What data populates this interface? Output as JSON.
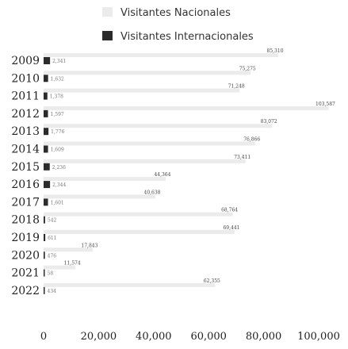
{
  "chart_data": {
    "type": "bar",
    "orientation": "horizontal",
    "categories": [
      "2009",
      "2010",
      "2011",
      "2012",
      "2013",
      "2014",
      "2015",
      "2016",
      "2017",
      "2018",
      "2019",
      "2020",
      "2021",
      "2022"
    ],
    "series": [
      {
        "name": "Visitantes Nacionales",
        "color": "#ebebeb",
        "values": [
          85310,
          75275,
          71248,
          103587,
          83072,
          76866,
          73411,
          44364,
          40638,
          68764,
          69441,
          17843,
          11574,
          62355
        ],
        "labels": [
          "85,310",
          "75,275",
          "71,248",
          "103,587",
          "83,072",
          "76,866",
          "73,411",
          "44,364",
          "40,638",
          "68,764",
          "69,441",
          "17,843",
          "11,574",
          "62,355"
        ]
      },
      {
        "name": "Visitantes Internacionales",
        "color": "#2b2b2b",
        "values": [
          2341,
          1632,
          1378,
          1597,
          1776,
          1609,
          2236,
          2344,
          1601,
          542,
          611,
          476,
          58,
          434
        ],
        "labels": [
          "2,341",
          "1,632",
          "1,378",
          "1,597",
          "1,776",
          "1,609",
          "2,236",
          "2,344",
          "1,601",
          "542",
          "611",
          "476",
          "58",
          "434"
        ]
      }
    ],
    "xlim": [
      0,
      100000
    ],
    "xticks": [
      0,
      20000,
      40000,
      60000,
      80000,
      100000
    ],
    "xtick_labels": [
      "0",
      "20,000",
      "40,000",
      "60,000",
      "80,000",
      "100,000"
    ],
    "legend_position": "top-right",
    "grid": false
  }
}
